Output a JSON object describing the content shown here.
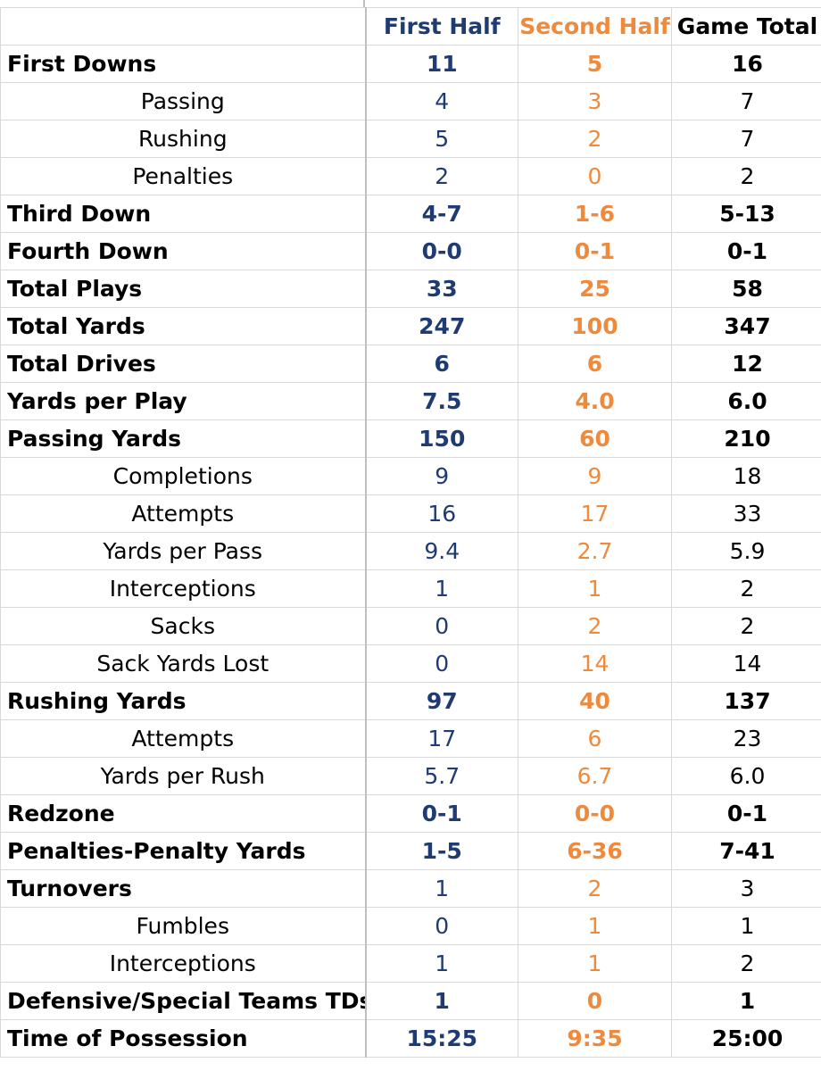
{
  "colors": {
    "first_half": "#1f3b73",
    "second_half": "#ef8a3c",
    "total": "#000000",
    "gridline": "#d9d9d9"
  },
  "headers": {
    "label": "",
    "first_half": "First Half",
    "second_half": "Second Half",
    "game_total": "Game Total"
  },
  "rows": [
    {
      "label": "First Downs",
      "level": "main",
      "first": "11",
      "second": "5",
      "total": "16"
    },
    {
      "label": "Passing",
      "level": "sub",
      "first": "4",
      "second": "3",
      "total": "7"
    },
    {
      "label": "Rushing",
      "level": "sub",
      "first": "5",
      "second": "2",
      "total": "7"
    },
    {
      "label": "Penalties",
      "level": "sub",
      "first": "2",
      "second": "0",
      "total": "2"
    },
    {
      "label": "Third Down",
      "level": "main",
      "first": "4-7",
      "second": "1-6",
      "total": "5-13"
    },
    {
      "label": "Fourth Down",
      "level": "main",
      "first": "0-0",
      "second": "0-1",
      "total": "0-1"
    },
    {
      "label": "Total Plays",
      "level": "main",
      "first": "33",
      "second": "25",
      "total": "58"
    },
    {
      "label": "Total Yards",
      "level": "main",
      "first": "247",
      "second": "100",
      "total": "347"
    },
    {
      "label": "Total Drives",
      "level": "main",
      "first": "6",
      "second": "6",
      "total": "12"
    },
    {
      "label": "Yards per Play",
      "level": "main",
      "first": "7.5",
      "second": "4.0",
      "total": "6.0"
    },
    {
      "label": "Passing Yards",
      "level": "main",
      "first": "150",
      "second": "60",
      "total": "210"
    },
    {
      "label": "Completions",
      "level": "sub",
      "first": "9",
      "second": "9",
      "total": "18"
    },
    {
      "label": "Attempts",
      "level": "sub",
      "first": "16",
      "second": "17",
      "total": "33"
    },
    {
      "label": "Yards per Pass",
      "level": "sub",
      "first": "9.4",
      "second": "2.7",
      "total": "5.9"
    },
    {
      "label": "Interceptions",
      "level": "sub",
      "first": "1",
      "second": "1",
      "total": "2"
    },
    {
      "label": "Sacks",
      "level": "sub",
      "first": "0",
      "second": "2",
      "total": "2"
    },
    {
      "label": "Sack Yards Lost",
      "level": "sub",
      "first": "0",
      "second": "14",
      "total": "14"
    },
    {
      "label": "Rushing Yards",
      "level": "main",
      "first": "97",
      "second": "40",
      "total": "137"
    },
    {
      "label": "Attempts",
      "level": "sub",
      "first": "17",
      "second": "6",
      "total": "23"
    },
    {
      "label": "Yards per Rush",
      "level": "sub",
      "first": "5.7",
      "second": "6.7",
      "total": "6.0"
    },
    {
      "label": "Redzone",
      "level": "main",
      "first": "0-1",
      "second": "0-0",
      "total": "0-1"
    },
    {
      "label": "Penalties-Penalty Yards",
      "level": "main",
      "first": "1-5",
      "second": "6-36",
      "total": "7-41"
    },
    {
      "label": "Turnovers",
      "level": "main",
      "first": "1",
      "second": "2",
      "total": "3",
      "value_weight": "normal"
    },
    {
      "label": "Fumbles",
      "level": "sub",
      "first": "0",
      "second": "1",
      "total": "1"
    },
    {
      "label": "Interceptions",
      "level": "sub",
      "first": "1",
      "second": "1",
      "total": "2"
    },
    {
      "label": "Defensive/Special Teams TDs",
      "level": "main",
      "first": "1",
      "second": "0",
      "total": "1"
    },
    {
      "label": "Time of Possession",
      "level": "main",
      "first": "15:25",
      "second": "9:35",
      "total": "25:00"
    }
  ]
}
